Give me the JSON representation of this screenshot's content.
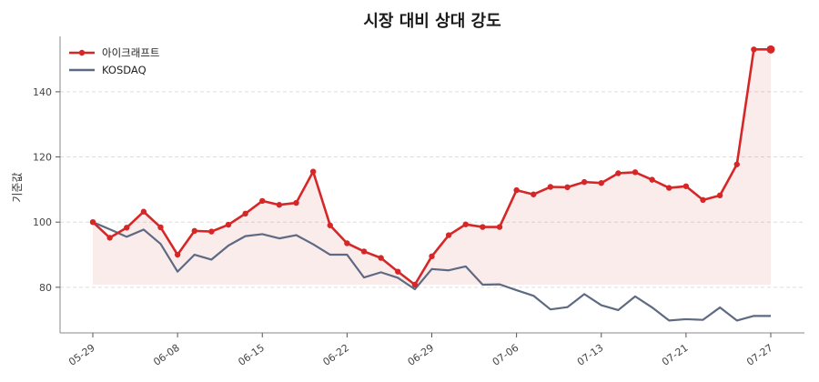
{
  "chart_data": {
    "type": "line",
    "title": "시장 대비 상대 강도",
    "xlabel": "",
    "ylabel": "기준값",
    "ylim": [
      66,
      157
    ],
    "yticks": [
      80,
      100,
      120,
      140
    ],
    "x_tick_labels": [
      "05-29",
      "06-08",
      "06-15",
      "06-22",
      "06-29",
      "07-06",
      "07-13",
      "07-21",
      "07-27"
    ],
    "x_tick_indices": [
      0,
      5,
      10,
      15,
      20,
      25,
      30,
      35,
      40
    ],
    "grid": "horizontal dashed",
    "legend_position": "top-left",
    "fill_baseline": 80.8,
    "x": [
      "05-29",
      "05-30",
      "06-01",
      "06-02",
      "06-03",
      "06-08",
      "06-09",
      "06-10",
      "06-11",
      "06-12",
      "06-15",
      "06-16",
      "06-17",
      "06-18",
      "06-19",
      "06-22",
      "06-23",
      "06-24",
      "06-25",
      "06-26",
      "06-29",
      "06-30",
      "07-01",
      "07-02",
      "07-03",
      "07-06",
      "07-07",
      "07-08",
      "07-09",
      "07-10",
      "07-13",
      "07-14",
      "07-15",
      "07-16",
      "07-17",
      "07-21",
      "07-22",
      "07-23",
      "07-24",
      "07-25",
      "07-27"
    ],
    "series": [
      {
        "name": "아이크래프트",
        "color": "#d62728",
        "marker": true,
        "values": [
          100.0,
          95.2,
          98.3,
          103.2,
          98.4,
          90.0,
          97.3,
          97.1,
          99.2,
          102.6,
          106.5,
          105.3,
          105.9,
          115.5,
          99.0,
          93.5,
          91.0,
          89.0,
          84.8,
          80.8,
          89.5,
          96.0,
          99.3,
          98.5,
          98.5,
          109.8,
          108.5,
          110.8,
          110.7,
          112.3,
          112.0,
          115.0,
          115.3,
          113.0,
          110.5,
          111.0,
          106.8,
          108.2,
          117.7,
          153.0,
          153.0
        ]
      },
      {
        "name": "KOSDAQ",
        "color": "#5e6a82",
        "marker": false,
        "values": [
          100.0,
          97.8,
          95.5,
          97.7,
          93.3,
          84.8,
          90.0,
          88.5,
          92.8,
          95.7,
          96.3,
          95.0,
          96.0,
          93.2,
          90.0,
          90.0,
          83.0,
          84.6,
          82.9,
          79.4,
          85.6,
          85.2,
          86.4,
          80.8,
          80.9,
          79.1,
          77.4,
          73.2,
          73.9,
          77.9,
          74.5,
          73.0,
          77.2,
          73.8,
          69.8,
          70.2,
          70.0,
          73.8,
          69.8,
          71.2,
          71.2
        ]
      }
    ]
  }
}
